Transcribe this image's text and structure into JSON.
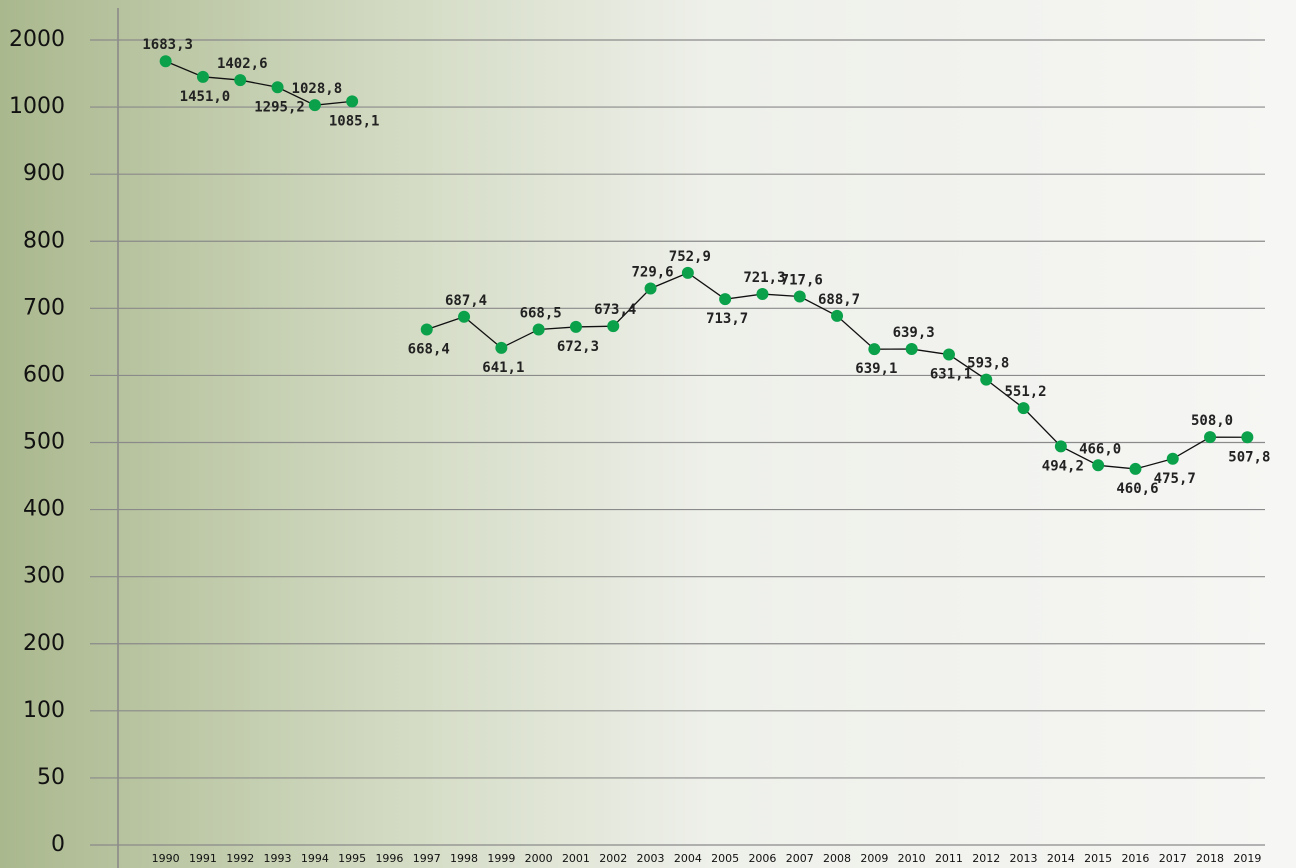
{
  "chart_data": {
    "type": "line",
    "categories": [
      "1990",
      "1991",
      "1992",
      "1993",
      "1994",
      "1995",
      "1996",
      "1997",
      "1998",
      "1999",
      "2000",
      "2001",
      "2002",
      "2003",
      "2004",
      "2005",
      "2006",
      "2007",
      "2008",
      "2009",
      "2010",
      "2011",
      "2012",
      "2013",
      "2014",
      "2015",
      "2016",
      "2017",
      "2018",
      "2019"
    ],
    "series": [
      {
        "color": "#0aa14a",
        "values": [
          1683.3,
          1451.0,
          1402.6,
          1295.2,
          1028.8,
          1085.1,
          null,
          668.4,
          687.4,
          641.1,
          668.5,
          672.3,
          673.4,
          729.6,
          752.9,
          713.7,
          721.3,
          717.6,
          688.7,
          639.1,
          639.3,
          631.1,
          593.8,
          551.2,
          494.2,
          466.0,
          460.6,
          475.7,
          508.0,
          507.8
        ],
        "value_labels": [
          "1683,3",
          "1451,0",
          "1402,6",
          "1295,2",
          "1028,8",
          "1085,1",
          null,
          "668,4",
          "687,4",
          "641,1",
          "668,5",
          "672,3",
          "673,4",
          "729,6",
          "752,9",
          "713,7",
          "721,3",
          "717,6",
          "688,7",
          "639,1",
          "639,3",
          "631,1",
          "593,8",
          "551,2",
          "494,2",
          "466,0",
          "460,6",
          "475,7",
          "508,0",
          "507,8"
        ]
      }
    ],
    "ylim": [
      0,
      2000
    ],
    "yticks": [
      0,
      50,
      100,
      200,
      300,
      400,
      500,
      600,
      700,
      800,
      900,
      1000,
      2000
    ],
    "grid": true
  }
}
